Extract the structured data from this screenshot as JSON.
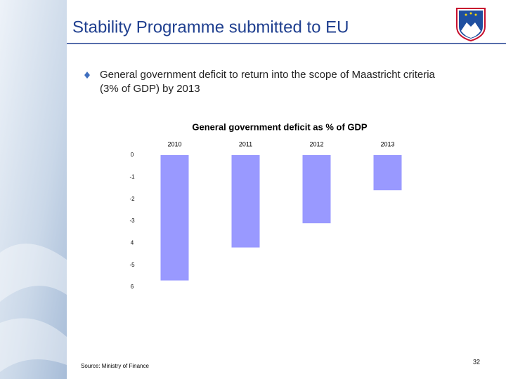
{
  "slide": {
    "title": "Stability Programme submitted to EU",
    "bullet_lines": [
      "General government deficit to return into the scope of Maastricht criteria",
      "(3% of GDP) by 2013"
    ],
    "source": "Source: Ministry of Finance",
    "page": "32"
  },
  "chart_data": {
    "type": "bar",
    "title": "General government deficit as % of GDP",
    "categories": [
      "2010",
      "2011",
      "2012",
      "2013"
    ],
    "values": [
      -5.7,
      -4.2,
      -3.1,
      -1.6
    ],
    "color": "#9999ff",
    "ylim": [
      -6,
      0
    ],
    "yticks": [
      0,
      -1,
      -2,
      -3,
      {
        "value": -4,
        "label": "4"
      },
      -5,
      {
        "value": -6,
        "label": "6"
      }
    ]
  }
}
